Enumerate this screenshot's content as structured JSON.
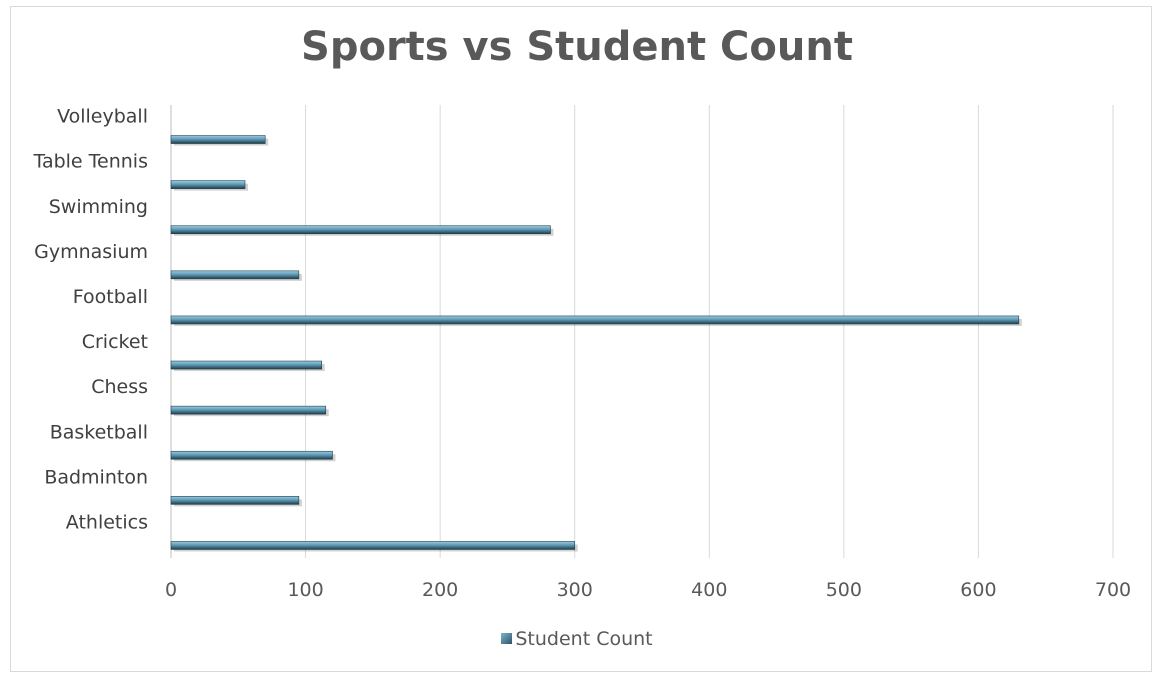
{
  "chart_data": {
    "type": "bar",
    "orientation": "horizontal",
    "title": "Sports vs Student Count",
    "categories": [
      "Athletics",
      "Badminton",
      "Basketball",
      "Chess",
      "Cricket",
      "Football",
      "Gymnasium",
      "Swimming",
      "Table Tennis",
      "Volleyball"
    ],
    "series": [
      {
        "name": "Student Count",
        "values": [
          300,
          95,
          120,
          115,
          112,
          630,
          95,
          282,
          55,
          70
        ]
      }
    ],
    "xlim": [
      0,
      700
    ],
    "xticks": [
      0,
      100,
      200,
      300,
      400,
      500,
      600,
      700
    ],
    "grid": "vertical",
    "legend_position": "bottom",
    "colors": {
      "bar": "#4e8aa3",
      "bar_light": "#8fc3d8",
      "bar_dark": "#203f4c",
      "grid": "#d9d9d9",
      "text": "#595959"
    }
  }
}
